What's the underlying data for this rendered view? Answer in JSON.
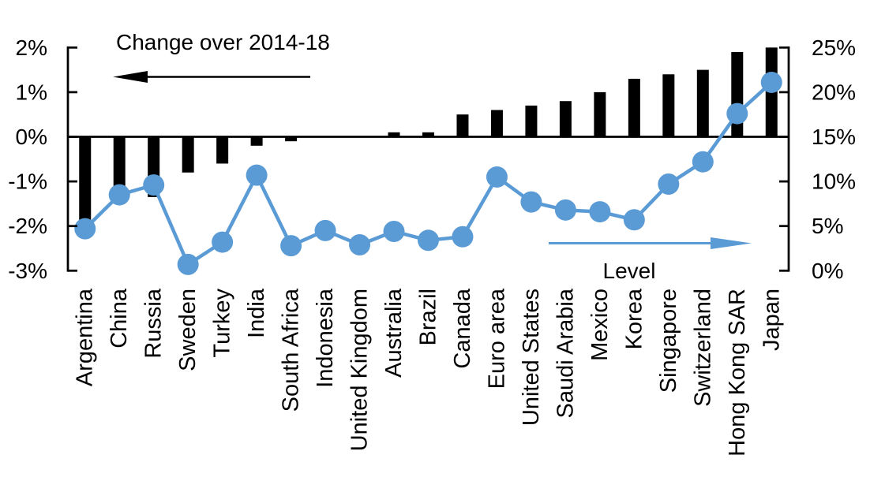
{
  "chart_data": {
    "type": "bar",
    "subtype": "combo-bar-line-dual-axis",
    "categories": [
      "Argentina",
      "China",
      "Russia",
      "Sweden",
      "Turkey",
      "India",
      "South Africa",
      "Indonesia",
      "United Kingdom",
      "Australia",
      "Brazil",
      "Canada",
      "Euro area",
      "United States",
      "Saudi Arabia",
      "Mexico",
      "Korea",
      "Singapore",
      "Switzerland",
      "Hong Kong SAR",
      "Japan"
    ],
    "series": [
      {
        "name": "Change over 2014-18",
        "type": "bar",
        "axis": "left",
        "color": "#000000",
        "values": [
          -1.9,
          -1.5,
          -1.35,
          -0.8,
          -0.6,
          -0.2,
          -0.1,
          0,
          0,
          0.1,
          0.1,
          0.5,
          0.6,
          0.7,
          0.8,
          1.0,
          1.3,
          1.4,
          1.5,
          1.9,
          2.0
        ]
      },
      {
        "name": "Level",
        "type": "line",
        "axis": "right",
        "color": "#5B9BD5",
        "values": [
          4.7,
          8.5,
          9.6,
          0.7,
          3.2,
          10.7,
          2.8,
          4.5,
          2.9,
          4.4,
          3.4,
          3.8,
          10.5,
          7.7,
          6.8,
          6.6,
          5.7,
          9.7,
          12.2,
          17.6,
          21.1
        ]
      }
    ],
    "left_axis": {
      "min": -3,
      "max": 2,
      "step": 1,
      "tick_labels": [
        "2%",
        "1%",
        "0%",
        "-1%",
        "-2%",
        "-3%"
      ]
    },
    "right_axis": {
      "min": 0,
      "max": 25,
      "step": 5,
      "tick_labels": [
        "25%",
        "20%",
        "15%",
        "10%",
        "5%",
        "0%"
      ]
    },
    "grid": "off",
    "legend": "none",
    "annotations": [
      {
        "id": "change-label",
        "text": "Change over 2014-18",
        "arrow": "left",
        "color": "#000000"
      },
      {
        "id": "level-label",
        "text": "Level",
        "arrow": "right",
        "color": "#5B9BD5"
      }
    ]
  }
}
